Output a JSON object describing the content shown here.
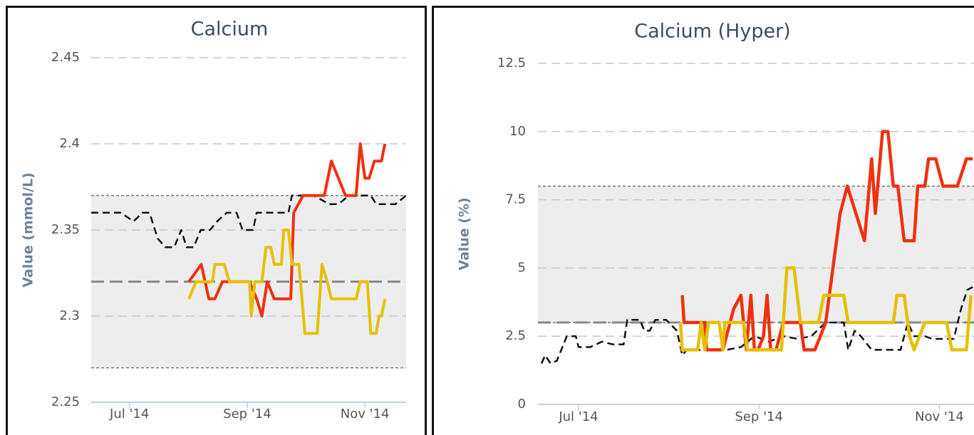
{
  "chart_data": [
    {
      "type": "line",
      "title": "Calcium",
      "y_label": "Value (mmol/L)",
      "xlim": [
        6.35,
        11.7
      ],
      "xticks": [
        {
          "value": 7,
          "label": "Jul '14"
        },
        {
          "value": 9,
          "label": "Sep '14"
        },
        {
          "value": 11,
          "label": "Nov '14"
        }
      ],
      "ylim": [
        2.25,
        2.45
      ],
      "yticks": [
        2.25,
        2.3,
        2.35,
        2.4,
        2.45
      ],
      "grid": true,
      "band": [
        2.27,
        2.37
      ],
      "reference": 2.32,
      "series": [
        {
          "color": "#111111",
          "dashed": true,
          "x": [
            6.35,
            6.85,
            7.07,
            7.22,
            7.34,
            7.48,
            7.61,
            7.76,
            7.88,
            7.97,
            8.09,
            8.21,
            8.37,
            8.49,
            8.65,
            8.82,
            8.92,
            9.1,
            9.16,
            9.4,
            9.7,
            9.76,
            10.13,
            10.39,
            10.55,
            10.73,
            11.1,
            11.19,
            11.52,
            11.7
          ],
          "values": [
            2.36,
            2.36,
            2.355,
            2.36,
            2.36,
            2.345,
            2.34,
            2.34,
            2.35,
            2.34,
            2.34,
            2.35,
            2.35,
            2.355,
            2.36,
            2.36,
            2.35,
            2.35,
            2.36,
            2.36,
            2.36,
            2.37,
            2.37,
            2.365,
            2.365,
            2.37,
            2.37,
            2.365,
            2.365,
            2.37
          ]
        },
        {
          "color": "#f03010",
          "dashed": false,
          "x": [
            8.01,
            8.22,
            8.35,
            8.45,
            8.58,
            9.04,
            9.16,
            9.25,
            9.34,
            9.46,
            9.74,
            9.79,
            9.95,
            10.31,
            10.43,
            10.55,
            10.67,
            10.85,
            10.92,
            11.0,
            11.07,
            11.16,
            11.28,
            11.34
          ],
          "values": [
            2.32,
            2.33,
            2.31,
            2.31,
            2.32,
            2.32,
            2.31,
            2.3,
            2.32,
            2.31,
            2.31,
            2.36,
            2.37,
            2.37,
            2.39,
            2.38,
            2.37,
            2.37,
            2.4,
            2.38,
            2.38,
            2.39,
            2.39,
            2.4
          ]
        },
        {
          "color": "#e6c000",
          "dashed": false,
          "x": [
            8.01,
            8.13,
            8.41,
            8.45,
            8.61,
            8.7,
            9.04,
            9.07,
            9.13,
            9.25,
            9.32,
            9.4,
            9.46,
            9.58,
            9.62,
            9.7,
            9.76,
            9.88,
            9.98,
            10.19,
            10.27,
            10.36,
            10.43,
            10.85,
            10.92,
            11.04,
            11.1,
            11.19,
            11.24,
            11.28,
            11.34
          ],
          "values": [
            2.31,
            2.32,
            2.32,
            2.33,
            2.33,
            2.32,
            2.32,
            2.3,
            2.32,
            2.32,
            2.34,
            2.34,
            2.33,
            2.33,
            2.35,
            2.35,
            2.33,
            2.33,
            2.29,
            2.29,
            2.33,
            2.32,
            2.31,
            2.31,
            2.32,
            2.32,
            2.29,
            2.29,
            2.3,
            2.3,
            2.31
          ]
        }
      ]
    },
    {
      "type": "line",
      "title": "Calcium (Hyper)",
      "y_label": "Value (%)",
      "xlim": [
        6.55,
        11.7
      ],
      "xticks": [
        {
          "value": 7,
          "label": "Jul '14"
        },
        {
          "value": 9,
          "label": "Sep '14"
        },
        {
          "value": 11,
          "label": "Nov '14"
        }
      ],
      "ylim": [
        0,
        12.5
      ],
      "yticks": [
        0,
        2.5,
        5,
        7.5,
        10,
        12.5
      ],
      "grid": true,
      "band": [
        3,
        8
      ],
      "reference": 3,
      "series": [
        {
          "color": "#111111",
          "dashed": true,
          "x": [
            6.59,
            6.63,
            6.69,
            6.76,
            6.87,
            6.97,
            7.0,
            7.13,
            7.26,
            7.38,
            7.5,
            7.54,
            7.68,
            7.73,
            7.79,
            7.85,
            7.97,
            8.09,
            8.15,
            8.2,
            8.48,
            8.64,
            8.8,
            8.95,
            9.11,
            9.27,
            9.43,
            9.58,
            9.74,
            9.94,
            9.99,
            10.06,
            10.13,
            10.25,
            10.41,
            10.57,
            10.65,
            10.72,
            10.84,
            10.92,
            11.16,
            11.24,
            11.31,
            11.37
          ],
          "values": [
            1.5,
            1.8,
            1.5,
            1.6,
            2.5,
            2.5,
            2.1,
            2.1,
            2.3,
            2.2,
            2.2,
            3.1,
            3.1,
            2.7,
            2.7,
            3.1,
            3.1,
            2.7,
            1.8,
            2.0,
            2.0,
            2.0,
            2.1,
            2.5,
            2.3,
            2.5,
            2.4,
            2.5,
            3.0,
            3.0,
            2.0,
            2.7,
            2.5,
            2.0,
            2.0,
            2.0,
            3.0,
            2.5,
            2.5,
            2.4,
            2.4,
            3.5,
            4.2,
            4.3
          ]
        },
        {
          "color": "#f03010",
          "dashed": false,
          "x": [
            8.15,
            8.17,
            8.4,
            8.42,
            8.6,
            8.64,
            8.72,
            8.8,
            8.86,
            8.91,
            8.95,
            8.99,
            9.05,
            9.09,
            9.13,
            9.19,
            9.27,
            9.46,
            9.5,
            9.62,
            9.74,
            9.82,
            9.9,
            9.98,
            10.17,
            10.25,
            10.29,
            10.37,
            10.43,
            10.49,
            10.54,
            10.61,
            10.72,
            10.76,
            10.84,
            10.88,
            10.96,
            11.04,
            11.2,
            11.3,
            11.37
          ],
          "values": [
            4.0,
            3.0,
            3.0,
            2.0,
            2.0,
            2.5,
            3.5,
            4.0,
            2.0,
            4.0,
            2.0,
            2.0,
            2.5,
            4.0,
            2.0,
            2.0,
            3.0,
            3.0,
            2.0,
            2.0,
            3.0,
            5.0,
            7.0,
            8.0,
            6.0,
            9.0,
            7.0,
            10.0,
            10.0,
            8.0,
            8.0,
            6.0,
            6.0,
            8.0,
            8.0,
            9.0,
            9.0,
            8.0,
            8.0,
            9.0,
            9.0
          ]
        },
        {
          "color": "#e6c000",
          "dashed": false,
          "x": [
            8.13,
            8.15,
            8.32,
            8.36,
            8.4,
            8.44,
            8.56,
            8.6,
            8.62,
            8.83,
            8.87,
            9.25,
            9.31,
            9.39,
            9.46,
            9.66,
            9.72,
            9.94,
            9.99,
            10.49,
            10.53,
            10.61,
            10.67,
            10.72,
            10.84,
            11.08,
            11.14,
            11.3,
            11.35
          ],
          "values": [
            3.0,
            2.0,
            2.0,
            3.0,
            2.0,
            3.0,
            3.0,
            2.0,
            3.0,
            3.0,
            2.0,
            2.0,
            5.0,
            5.0,
            3.0,
            3.0,
            4.0,
            4.0,
            3.0,
            3.0,
            4.0,
            4.0,
            2.5,
            2.0,
            3.0,
            3.0,
            2.0,
            2.0,
            4.0
          ]
        }
      ]
    }
  ]
}
